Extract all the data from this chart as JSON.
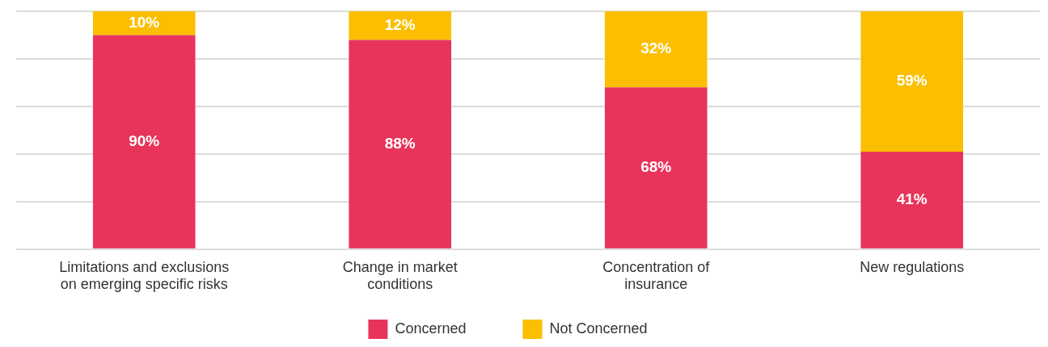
{
  "chart_data": {
    "type": "bar",
    "stacked": true,
    "categories": [
      "Limitations and exclusions on emerging specific risks",
      "Change in market conditions",
      "Concentration of insurance",
      "New regulations"
    ],
    "series": [
      {
        "name": "Concerned",
        "color": "#e8345a",
        "values": [
          90,
          88,
          68,
          41
        ],
        "value_labels": [
          "90%",
          "88%",
          "68%",
          "41%"
        ]
      },
      {
        "name": "Not Concerned",
        "color": "#fbbf00",
        "values": [
          10,
          12,
          32,
          59
        ],
        "value_labels": [
          "10%",
          "12%",
          "32%",
          "59%"
        ]
      }
    ],
    "ylim": [
      0,
      100
    ],
    "yticks": [
      {
        "value": 0,
        "label": null
      },
      {
        "value": 20,
        "label": null
      },
      {
        "value": 40,
        "label": null
      },
      {
        "value": 60,
        "label": null
      },
      {
        "value": 80,
        "label": null
      },
      {
        "value": 100,
        "label": null
      }
    ],
    "grid": "y",
    "legend": "bottom",
    "tick_labels": "x"
  }
}
